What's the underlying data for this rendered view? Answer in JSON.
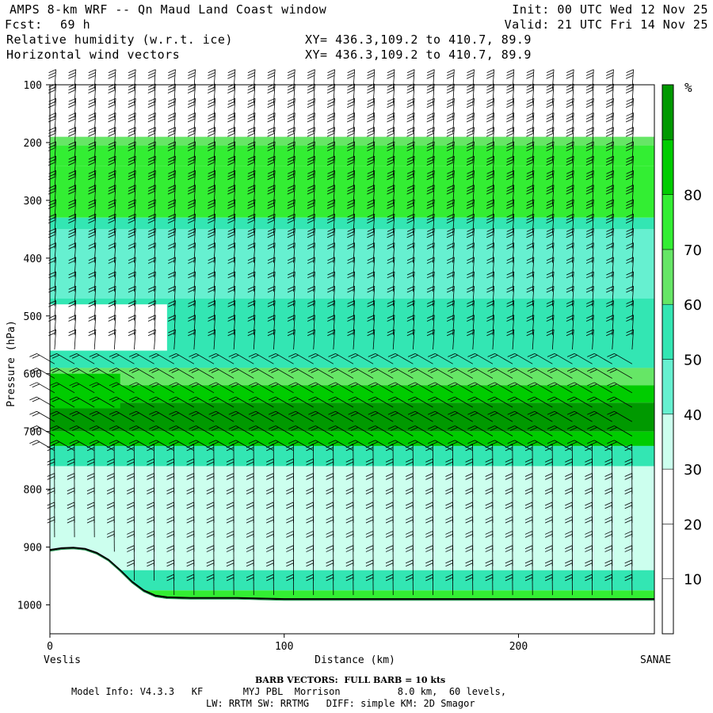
{
  "header": {
    "title": "AMPS 8-km WRF -- Qn Maud Land Coast window",
    "init": "Init: 00 UTC Wed 12 Nov 25",
    "fcst_label": "Fcst:",
    "fcst_value": "69 h",
    "valid": "Valid: 21 UTC Fri 14 Nov 25",
    "field1": "Relative humidity (w.r.t. ice)",
    "field1_xy": "XY= 436.3,109.2 to 410.7, 89.9",
    "field2": "Horizontal wind vectors",
    "field2_xy": "XY= 436.3,109.2 to 410.7, 89.9"
  },
  "chart_data": {
    "type": "heatmap",
    "xlabel": "Distance (km)",
    "ylabel": "Pressure (hPa)",
    "xlim": [
      0,
      258
    ],
    "ylim": [
      1050,
      100
    ],
    "x_ticks": [
      0,
      100,
      200
    ],
    "y_ticks": [
      100,
      200,
      300,
      400,
      500,
      600,
      700,
      800,
      900,
      1000
    ],
    "x_start_label": "Veslis",
    "x_end_label": "SANAE",
    "colorbar_unit": "%",
    "colorbar_levels": [
      10,
      20,
      30,
      40,
      50,
      60,
      70,
      80
    ],
    "colorbar_colors": [
      "#ffffff",
      "#ffffff",
      "#ffffff",
      "#ccffee",
      "#66f0d0",
      "#33e6b3",
      "#66e666",
      "#33ee33",
      "#00cc00",
      "#009900"
    ],
    "terrain_km": [
      0,
      5,
      10,
      15,
      20,
      25,
      30,
      35,
      40,
      45,
      50,
      60,
      80,
      100,
      150,
      200,
      258
    ],
    "terrain_hpa": [
      905,
      902,
      901,
      903,
      910,
      922,
      940,
      960,
      975,
      984,
      987,
      988,
      988,
      990,
      990,
      990,
      990
    ],
    "rh_bands": [
      {
        "p_top": 100,
        "p_bot": 190,
        "rh": 10
      },
      {
        "p_top": 190,
        "p_bot": 205,
        "rh": 55
      },
      {
        "p_top": 205,
        "p_bot": 240,
        "rh": 65
      },
      {
        "p_top": 240,
        "p_bot": 330,
        "rh": 60
      },
      {
        "p_top": 330,
        "p_bot": 350,
        "rh": 48
      },
      {
        "p_top": 350,
        "p_bot": 460,
        "rh": 35
      },
      {
        "p_top": 460,
        "p_bot": 590,
        "rh": 45
      },
      {
        "p_top": 590,
        "p_bot": 620,
        "rh": 55
      },
      {
        "p_top": 620,
        "p_bot": 650,
        "rh": 70
      },
      {
        "p_top": 650,
        "p_bot": 700,
        "rh": 85
      },
      {
        "p_top": 700,
        "p_bot": 725,
        "rh": 70
      },
      {
        "p_top": 725,
        "p_bot": 760,
        "rh": 45
      },
      {
        "p_top": 760,
        "p_bot": 940,
        "rh": 20
      },
      {
        "p_top": 940,
        "p_bot": 975,
        "rh": 45
      },
      {
        "p_top": 975,
        "p_bot": 1050,
        "rh": 60
      }
    ],
    "rh_patches": [
      {
        "x0": 0,
        "x1": 50,
        "p_top": 480,
        "p_bot": 560,
        "rh": 10
      },
      {
        "x0": 0,
        "x1": 258,
        "p_top": 380,
        "p_bot": 470,
        "rh": 32
      },
      {
        "x0": 0,
        "x1": 30,
        "p_top": 600,
        "p_bot": 660,
        "rh": 75
      }
    ]
  },
  "footer": {
    "barb_note": "BARB VECTORS:  FULL BARB = 10 kts",
    "model_info": "Model Info: V4.3.3   KF       MYJ PBL  Morrison          8.0 km,  60 levels,",
    "model_info2": "LW: RRTM SW: RRTMG   DIFF: simple KM: 2D Smagor"
  }
}
